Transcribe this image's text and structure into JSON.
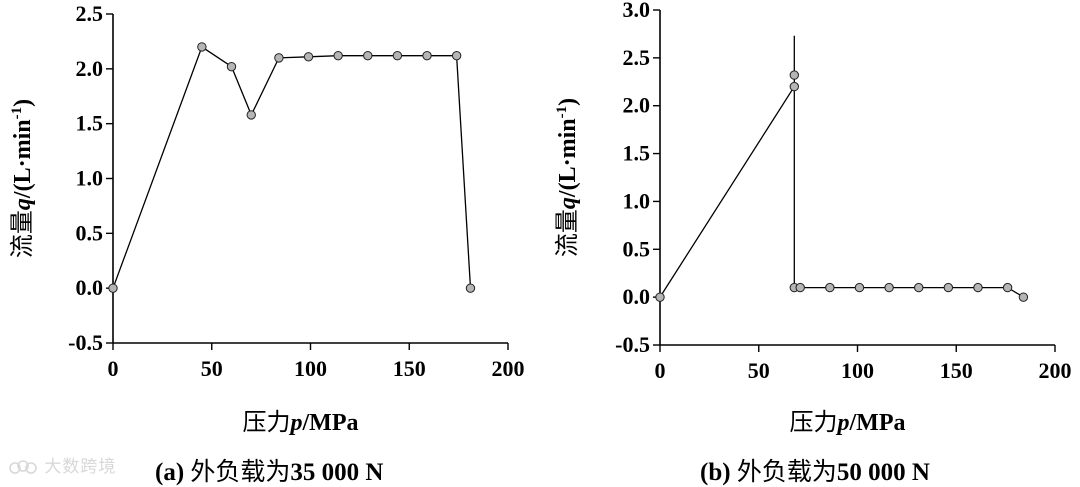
{
  "watermark": "大数跨境",
  "chart_data": [
    {
      "type": "line",
      "panel_caption": {
        "prefix": "(a) ",
        "text": "外负载为",
        "number": "35 000 N"
      },
      "xlabel": {
        "text": "压力",
        "var": "p",
        "unit": "/MPa"
      },
      "ylabel": {
        "text": "流量",
        "var": "q",
        "unit_open": "/(L·min",
        "unit_sup": "-1",
        "unit_close": ")"
      },
      "xlim": [
        0,
        200
      ],
      "ylim": [
        -0.5,
        2.5
      ],
      "xticks": [
        0,
        50,
        100,
        150,
        200
      ],
      "yticks": [
        -0.5,
        0.0,
        0.5,
        1.0,
        1.5,
        2.0,
        2.5
      ],
      "ytick_labels": [
        "-0.5",
        "0.0",
        "0.5",
        "1.0",
        "1.5",
        "2.0",
        "2.5"
      ],
      "xtick_labels": [
        "0",
        "50",
        "100",
        "150",
        "200"
      ],
      "series": [
        {
          "x": [
            0,
            45,
            60,
            70,
            84,
            99,
            114,
            129,
            144,
            159,
            174,
            181
          ],
          "y": [
            0.0,
            2.2,
            2.02,
            1.58,
            2.1,
            2.11,
            2.12,
            2.12,
            2.12,
            2.12,
            2.12,
            0.0
          ],
          "markers": [
            true,
            true,
            true,
            true,
            true,
            true,
            true,
            true,
            true,
            true,
            true,
            true
          ]
        }
      ]
    },
    {
      "type": "line",
      "panel_caption": {
        "prefix": "(b) ",
        "text": "外负载为",
        "number": "50 000 N"
      },
      "xlabel": {
        "text": "压力",
        "var": "p",
        "unit": "/MPa"
      },
      "ylabel": {
        "text": "流量",
        "var": "q",
        "unit_open": "/(L·min",
        "unit_sup": "-1",
        "unit_close": ")"
      },
      "xlim": [
        0,
        200
      ],
      "ylim": [
        -0.5,
        3.0
      ],
      "xticks": [
        0,
        50,
        100,
        150,
        200
      ],
      "yticks": [
        -0.5,
        0.0,
        0.5,
        1.0,
        1.5,
        2.0,
        2.5,
        3.0
      ],
      "ytick_labels": [
        "-0.5",
        "0.0",
        "0.5",
        "1.0",
        "1.5",
        "2.0",
        "2.5",
        "3.0"
      ],
      "xtick_labels": [
        "0",
        "50",
        "100",
        "150",
        "200"
      ],
      "series": [
        {
          "x": [
            0,
            68,
            68,
            68,
            68,
            68,
            71,
            86,
            101,
            116,
            131,
            146,
            161,
            176,
            184
          ],
          "y": [
            0.0,
            2.2,
            2.73,
            2.32,
            2.2,
            0.1,
            0.1,
            0.1,
            0.1,
            0.1,
            0.1,
            0.1,
            0.1,
            0.1,
            0.0
          ],
          "markers": [
            true,
            false,
            false,
            true,
            true,
            true,
            true,
            true,
            true,
            true,
            true,
            true,
            true,
            true,
            true
          ]
        }
      ]
    }
  ]
}
